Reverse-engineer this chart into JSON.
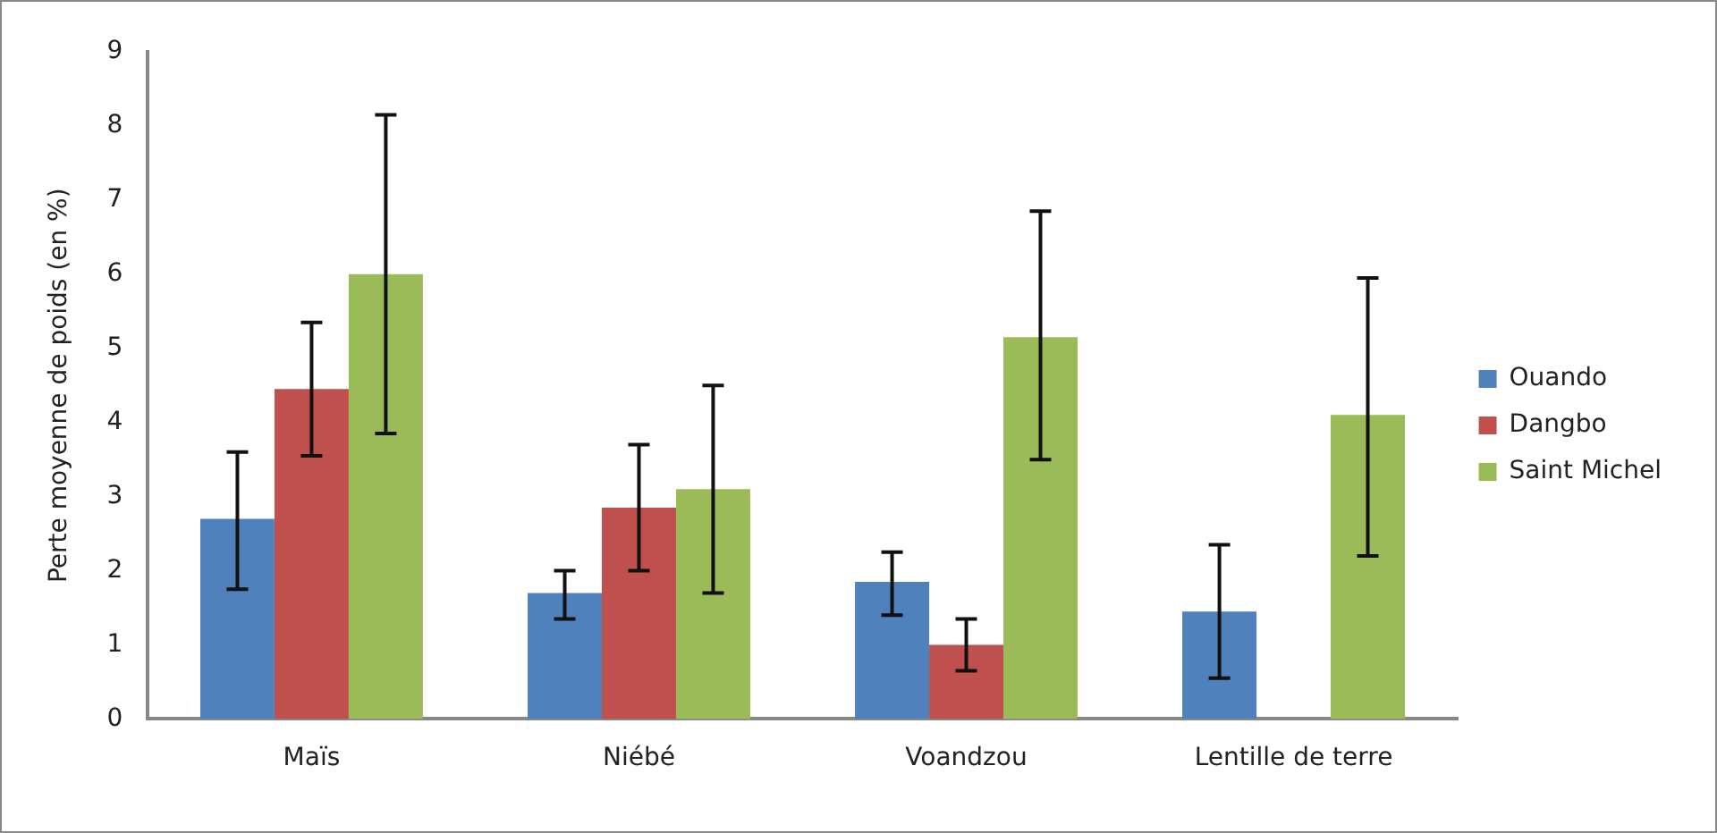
{
  "chart_data": {
    "type": "bar",
    "ylabel": "Perte moyenne de poids (en %)",
    "categories": [
      "Maïs",
      "Niébé",
      "Voandzou",
      "Lentille de terre"
    ],
    "series": [
      {
        "name": "Ouando",
        "color": "#4f81bd",
        "values": [
          2.7,
          1.7,
          1.85,
          1.45
        ],
        "errors": [
          [
            1.75,
            3.6
          ],
          [
            1.35,
            2.0
          ],
          [
            1.4,
            2.25
          ],
          [
            0.55,
            2.35
          ]
        ]
      },
      {
        "name": "Dangbo",
        "color": "#c0504d",
        "values": [
          4.45,
          2.85,
          1.0,
          null
        ],
        "errors": [
          [
            3.55,
            5.35
          ],
          [
            2.0,
            3.7
          ],
          [
            0.65,
            1.35
          ],
          null
        ]
      },
      {
        "name": "Saint Michel",
        "color": "#9bbb59",
        "values": [
          6.0,
          3.1,
          5.15,
          4.1
        ],
        "errors": [
          [
            3.85,
            8.15
          ],
          [
            1.7,
            4.5
          ],
          [
            3.5,
            6.85
          ],
          [
            2.2,
            5.95
          ]
        ]
      }
    ],
    "ylim": [
      0,
      9
    ],
    "yticks": [
      0,
      1,
      2,
      3,
      4,
      5,
      6,
      7,
      8,
      9
    ],
    "grid": false,
    "legend": "right"
  }
}
